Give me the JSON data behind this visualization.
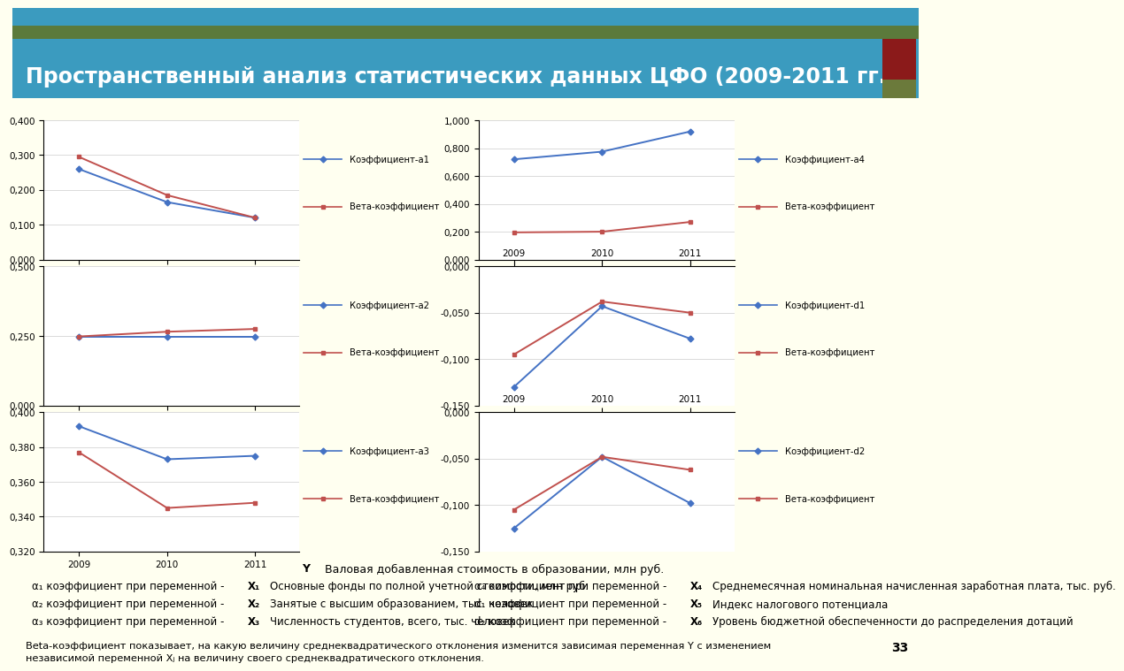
{
  "title": "Пространственный анализ статистических данных ЦФО (2009-2011 гг.)",
  "title_color": "#FFFFFF",
  "header_bg": "#3B9BBF",
  "background": "#FFFFF0",
  "years": [
    2009,
    2010,
    2011
  ],
  "charts": [
    {
      "label_coef": "Коэффициент-а1",
      "label_beta": "Вета-коэффициент",
      "coef": [
        0.26,
        0.165,
        0.12
      ],
      "beta": [
        0.295,
        0.185,
        0.12
      ],
      "ylim": [
        0.0,
        0.4
      ],
      "yticks": [
        0.0,
        0.1,
        0.2,
        0.3,
        0.4
      ],
      "ytick_labels": [
        "0,000",
        "0,100",
        "0,200",
        "0,300",
        "0,400"
      ],
      "negative": false
    },
    {
      "label_coef": "Коэффициент-а2",
      "label_beta": "Вета-коэффициент",
      "coef": [
        0.248,
        0.248,
        0.248
      ],
      "beta": [
        0.248,
        0.265,
        0.275
      ],
      "ylim": [
        0.0,
        0.5
      ],
      "yticks": [
        0.0,
        0.25,
        0.5
      ],
      "ytick_labels": [
        "0,000",
        "0,250",
        "0,500"
      ],
      "negative": false
    },
    {
      "label_coef": "Коэффициент-а3",
      "label_beta": "Вета-коэффициент",
      "coef": [
        0.392,
        0.373,
        0.375
      ],
      "beta": [
        0.377,
        0.345,
        0.348
      ],
      "ylim": [
        0.32,
        0.4
      ],
      "yticks": [
        0.32,
        0.34,
        0.36,
        0.38,
        0.4
      ],
      "ytick_labels": [
        "0,320",
        "0,340",
        "0,360",
        "0,380",
        "0,400"
      ],
      "negative": false
    },
    {
      "label_coef": "Коэффициент-а4",
      "label_beta": "Вета-коэффициент",
      "coef": [
        0.72,
        0.775,
        0.92
      ],
      "beta": [
        0.195,
        0.2,
        0.27
      ],
      "ylim": [
        0.0,
        1.0
      ],
      "yticks": [
        0.0,
        0.2,
        0.4,
        0.6,
        0.8,
        1.0
      ],
      "ytick_labels": [
        "0,000",
        "0,200",
        "0,400",
        "0,600",
        "0,800",
        "1,000"
      ],
      "negative": false
    },
    {
      "label_coef": "Коэффициент-d1",
      "label_beta": "Вета-коэффициент",
      "coef": [
        -0.13,
        -0.043,
        -0.078
      ],
      "beta": [
        -0.095,
        -0.038,
        -0.05
      ],
      "ylim": [
        -0.15,
        0.0
      ],
      "yticks": [
        -0.15,
        -0.1,
        -0.05,
        0.0
      ],
      "ytick_labels": [
        "-0,150",
        "-0,100",
        "-0,050",
        "0,000"
      ],
      "negative": true
    },
    {
      "label_coef": "Коэффициент-d2",
      "label_beta": "Вета-коэффициент",
      "coef": [
        -0.125,
        -0.048,
        -0.098
      ],
      "beta": [
        -0.105,
        -0.048,
        -0.062
      ],
      "ylim": [
        -0.15,
        0.0
      ],
      "yticks": [
        -0.15,
        -0.1,
        -0.05,
        0.0
      ],
      "ytick_labels": [
        "-0,150",
        "-0,100",
        "-0,050",
        "0,000"
      ],
      "negative": true
    }
  ],
  "blue_color": "#4472C4",
  "red_color": "#C0504D",
  "chart_bg": "#FFFFFF",
  "bar_dark_red": "#8B0000",
  "bar_olive": "#6B8E00"
}
